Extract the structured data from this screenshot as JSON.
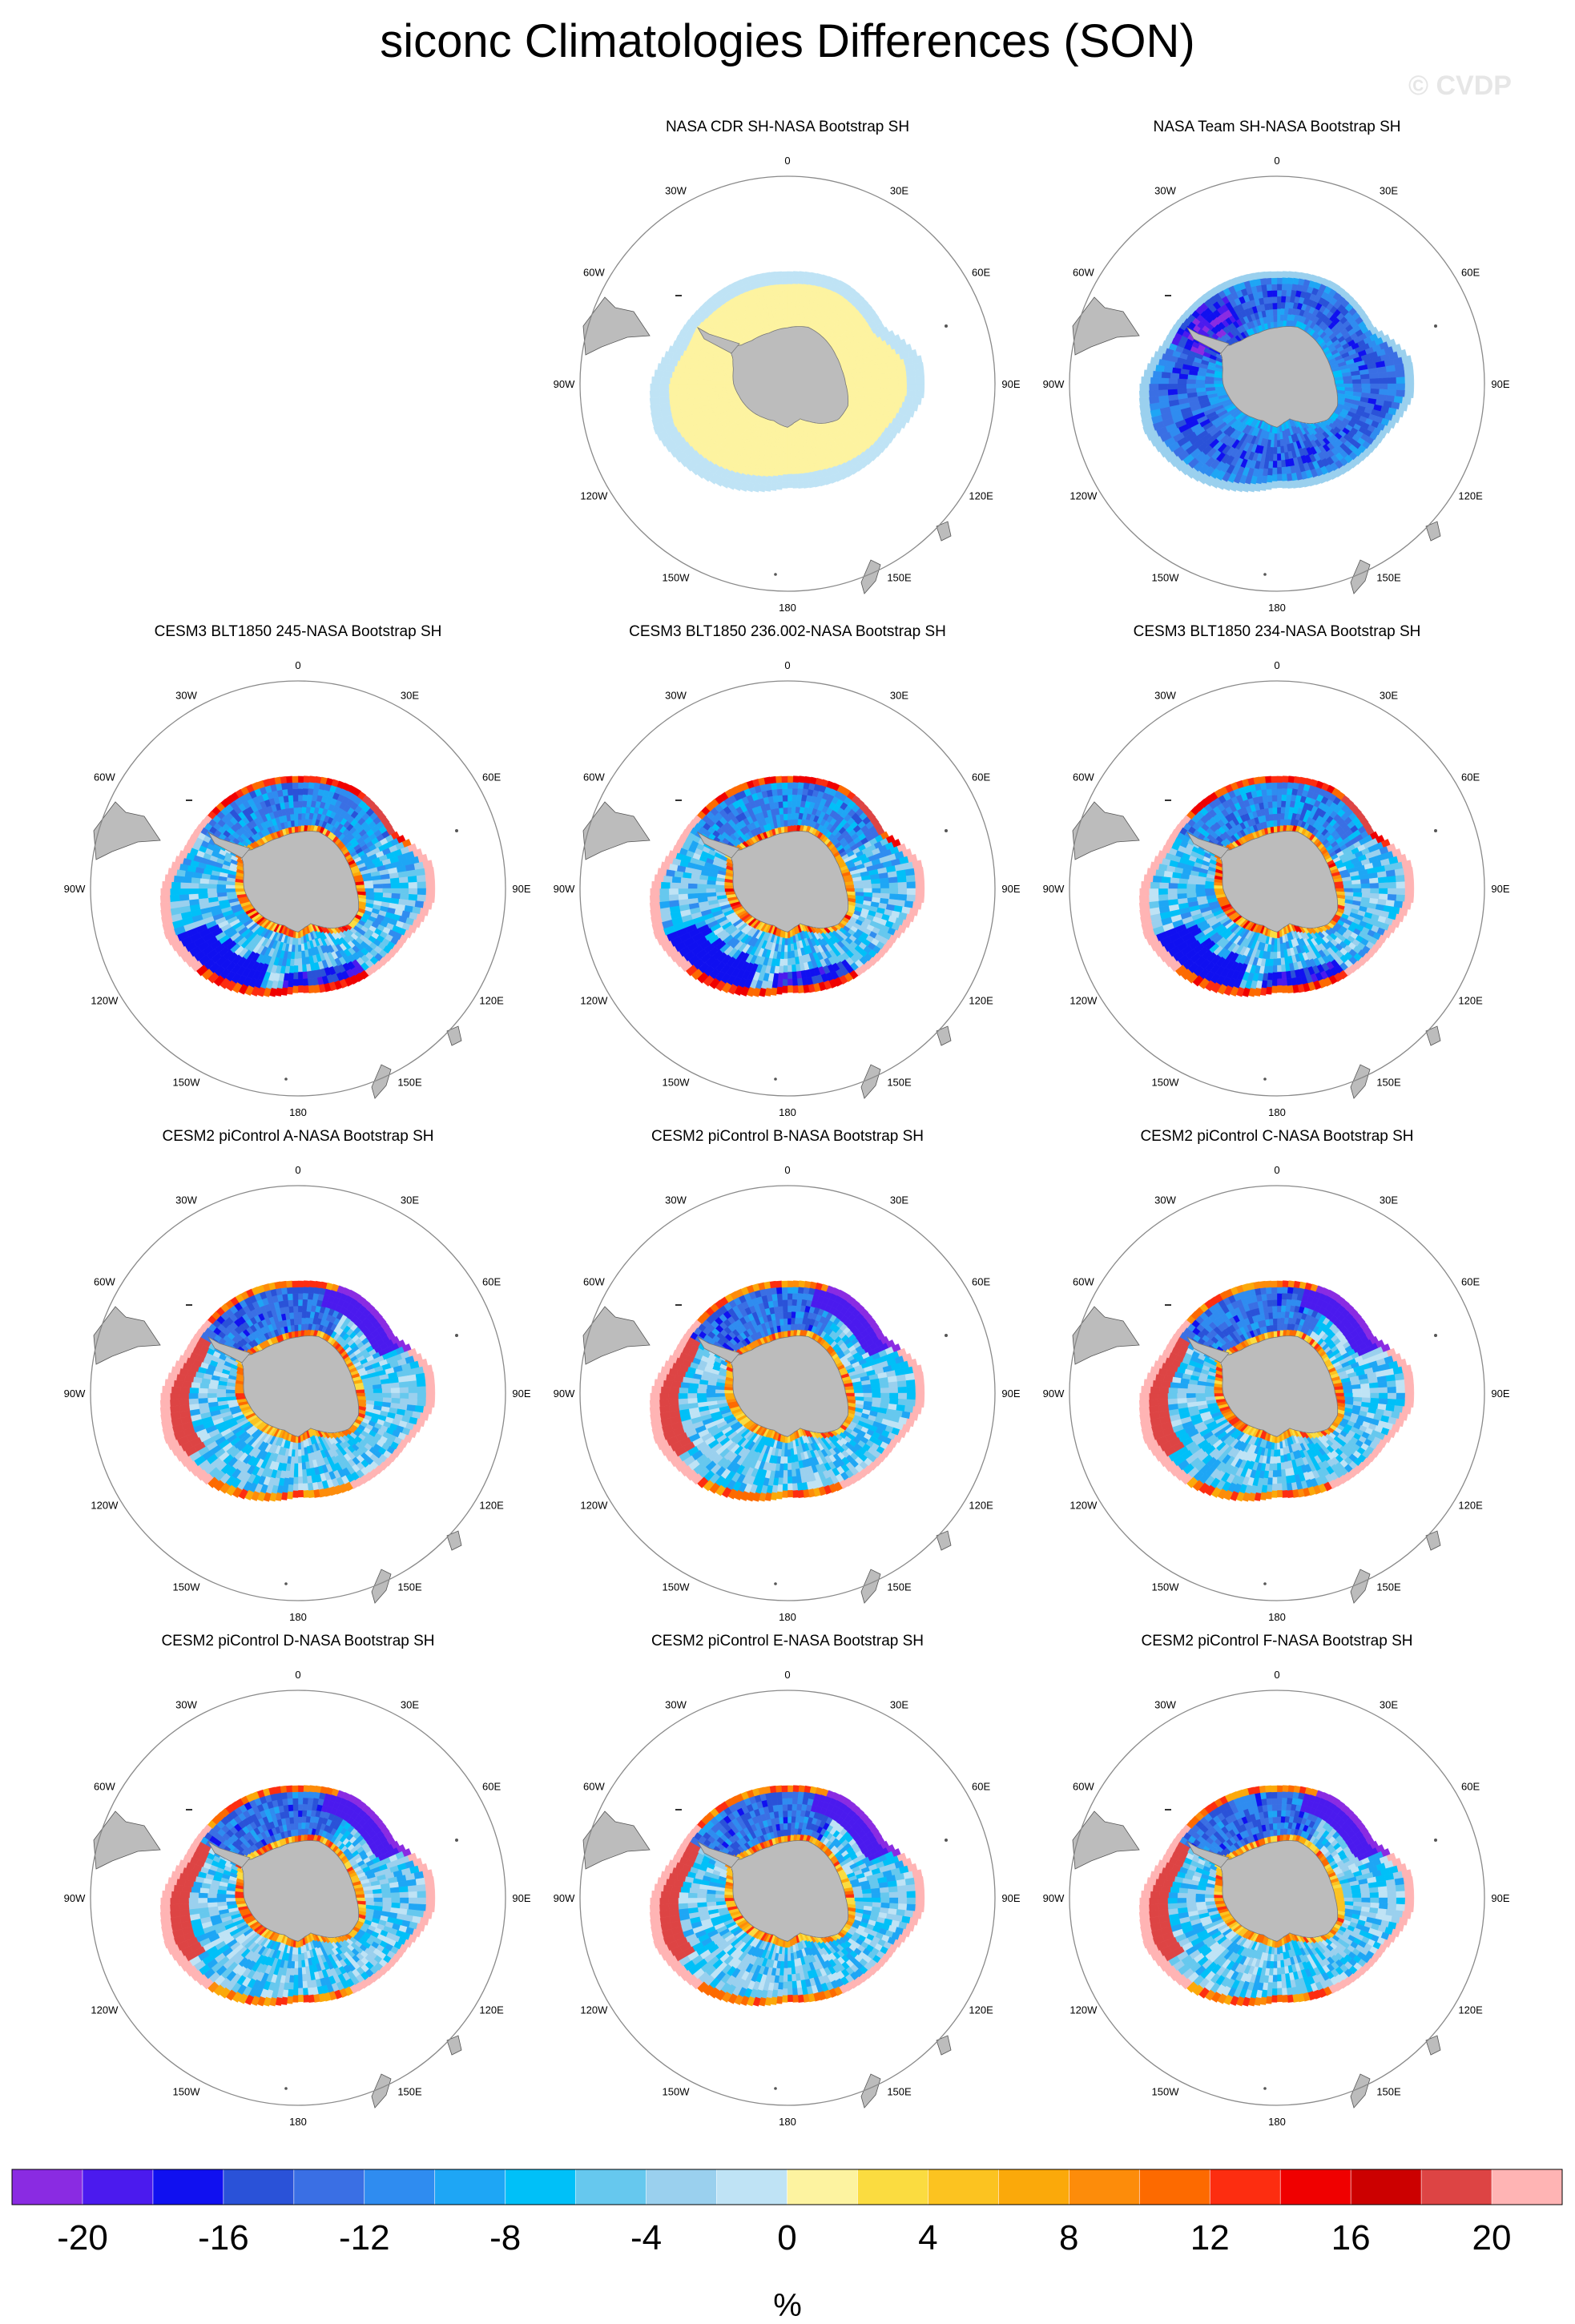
{
  "title": "siconc Climatologies Differences (SON)",
  "watermark": "© CVDP",
  "lon_labels": [
    "0",
    "30E",
    "60E",
    "90E",
    "120E",
    "150E",
    "180",
    "150W",
    "120W",
    "90W",
    "60W",
    "30W"
  ],
  "panels": [
    {
      "title": "NASA CDR SH-NASA Bootstrap SH",
      "pattern": "cdr"
    },
    {
      "title": "NASA Team SH-NASA Bootstrap SH",
      "pattern": "team"
    },
    {
      "title": "CESM3 BLT1850 245-NASA Bootstrap SH",
      "pattern": "cesm3"
    },
    {
      "title": "CESM3 BLT1850 236.002-NASA Bootstrap SH",
      "pattern": "cesm3"
    },
    {
      "title": "CESM3 BLT1850 234-NASA Bootstrap SH",
      "pattern": "cesm3"
    },
    {
      "title": "CESM2 piControl A-NASA Bootstrap SH",
      "pattern": "cesm2"
    },
    {
      "title": "CESM2 piControl B-NASA Bootstrap SH",
      "pattern": "cesm2"
    },
    {
      "title": "CESM2 piControl C-NASA Bootstrap SH",
      "pattern": "cesm2"
    },
    {
      "title": "CESM2 piControl D-NASA Bootstrap SH",
      "pattern": "cesm2"
    },
    {
      "title": "CESM2 piControl E-NASA Bootstrap SH",
      "pattern": "cesm2"
    },
    {
      "title": "CESM2 piControl F-NASA Bootstrap SH",
      "pattern": "cesm2"
    }
  ],
  "colors": {
    "land": "#bcbcbc",
    "circle": "#8a8a8a"
  },
  "chart_data": {
    "type": "heatmap",
    "title": "siconc Climatologies Differences (SON)",
    "projection": "south polar stereographic",
    "colorbar": {
      "units": "%",
      "tick_labels": [
        "-20",
        "-16",
        "-12",
        "-8",
        "-4",
        "0",
        "4",
        "8",
        "12",
        "16",
        "20"
      ],
      "levels": [
        -20,
        -18,
        -16,
        -14,
        -12,
        -10,
        -8,
        -6,
        -4,
        -2,
        0,
        2,
        4,
        6,
        8,
        10,
        12,
        14,
        16,
        18,
        20
      ],
      "colors": [
        "#8a2be2",
        "#4b1aee",
        "#1010f0",
        "#2a52d8",
        "#3a6fe4",
        "#2f8cf0",
        "#1ea6f5",
        "#00c0f8",
        "#66c8ee",
        "#9ad0ee",
        "#bfe3f5",
        "#fdf3a0",
        "#fbdc40",
        "#fcc320",
        "#fba90a",
        "#fd8c0a",
        "#fd6a00",
        "#fd2d10",
        "#f00000",
        "#cc0000",
        "#dd4444",
        "#ffb4b4"
      ]
    }
  }
}
